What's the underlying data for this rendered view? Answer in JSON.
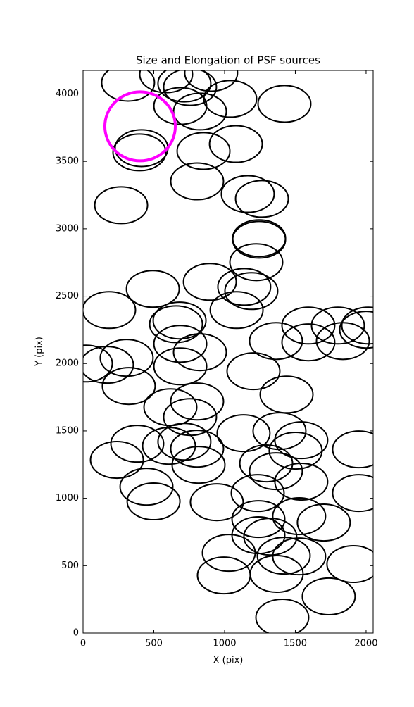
{
  "chart_data": {
    "type": "ellipse",
    "title": "Size and Elongation of PSF sources",
    "xlabel": "X (pix)",
    "ylabel": "Y (pix)",
    "xlim": [
      0,
      2050
    ],
    "ylim": [
      0,
      4175
    ],
    "xticks": [
      0,
      500,
      1000,
      1500,
      2000
    ],
    "yticks": [
      0,
      500,
      1000,
      1500,
      2000,
      2500,
      3000,
      3500,
      4000
    ],
    "series": [
      {
        "color": "#000000",
        "width": 373,
        "height": 272,
        "x": [
          318,
          587,
          716,
          756,
          905,
          1040,
          687,
          826,
          1423,
          398,
          413,
          851,
          1080,
          806,
          1164,
          1264,
          269,
          1244,
          1244,
          1224,
          896,
          1139,
          1189,
          1085,
          493,
          184,
          657,
          682,
          687,
          826,
          687,
          169,
          20,
          308,
          323,
          1204,
          1363,
          1592,
          1592,
          1801,
          1836,
          2015,
          2000,
          1438,
          617,
          806,
          756,
          1134,
          1388,
          1542,
          1502,
          383,
          239,
          607,
          716,
          806,
          816,
          1294,
          1363,
          1542,
          1950,
          448,
          498,
          945,
          1234,
          1950,
          1527,
          1701,
          1239,
          1239,
          1323,
          1418,
          1527,
          1030,
          995,
          1368,
          1910,
          1736,
          1408
        ],
        "y": [
          4084,
          4146,
          4078,
          4052,
          4157,
          3964,
          3911,
          3870,
          3927,
          3567,
          3598,
          3577,
          3629,
          3352,
          3258,
          3222,
          3175,
          2919,
          2930,
          2752,
          2606,
          2569,
          2538,
          2397,
          2554,
          2397,
          2292,
          2319,
          2146,
          2084,
          1979,
          1990,
          2000,
          2042,
          1833,
          1943,
          2167,
          2157,
          2282,
          2282,
          2167,
          2282,
          2251,
          1770,
          1676,
          1718,
          1603,
          1483,
          1499,
          1431,
          1353,
          1405,
          1285,
          1389,
          1420,
          1368,
          1248,
          1259,
          1201,
          1123,
          1363,
          1086,
          977,
          971,
          1039,
          1039,
          867,
          820,
          846,
          726,
          715,
          574,
          569,
          595,
          428,
          439,
          512,
          272,
          115
        ]
      },
      {
        "color": "#ff00ff",
        "width": 498,
        "height": 512,
        "x": [
          403
        ],
        "y": [
          3760
        ]
      }
    ]
  }
}
